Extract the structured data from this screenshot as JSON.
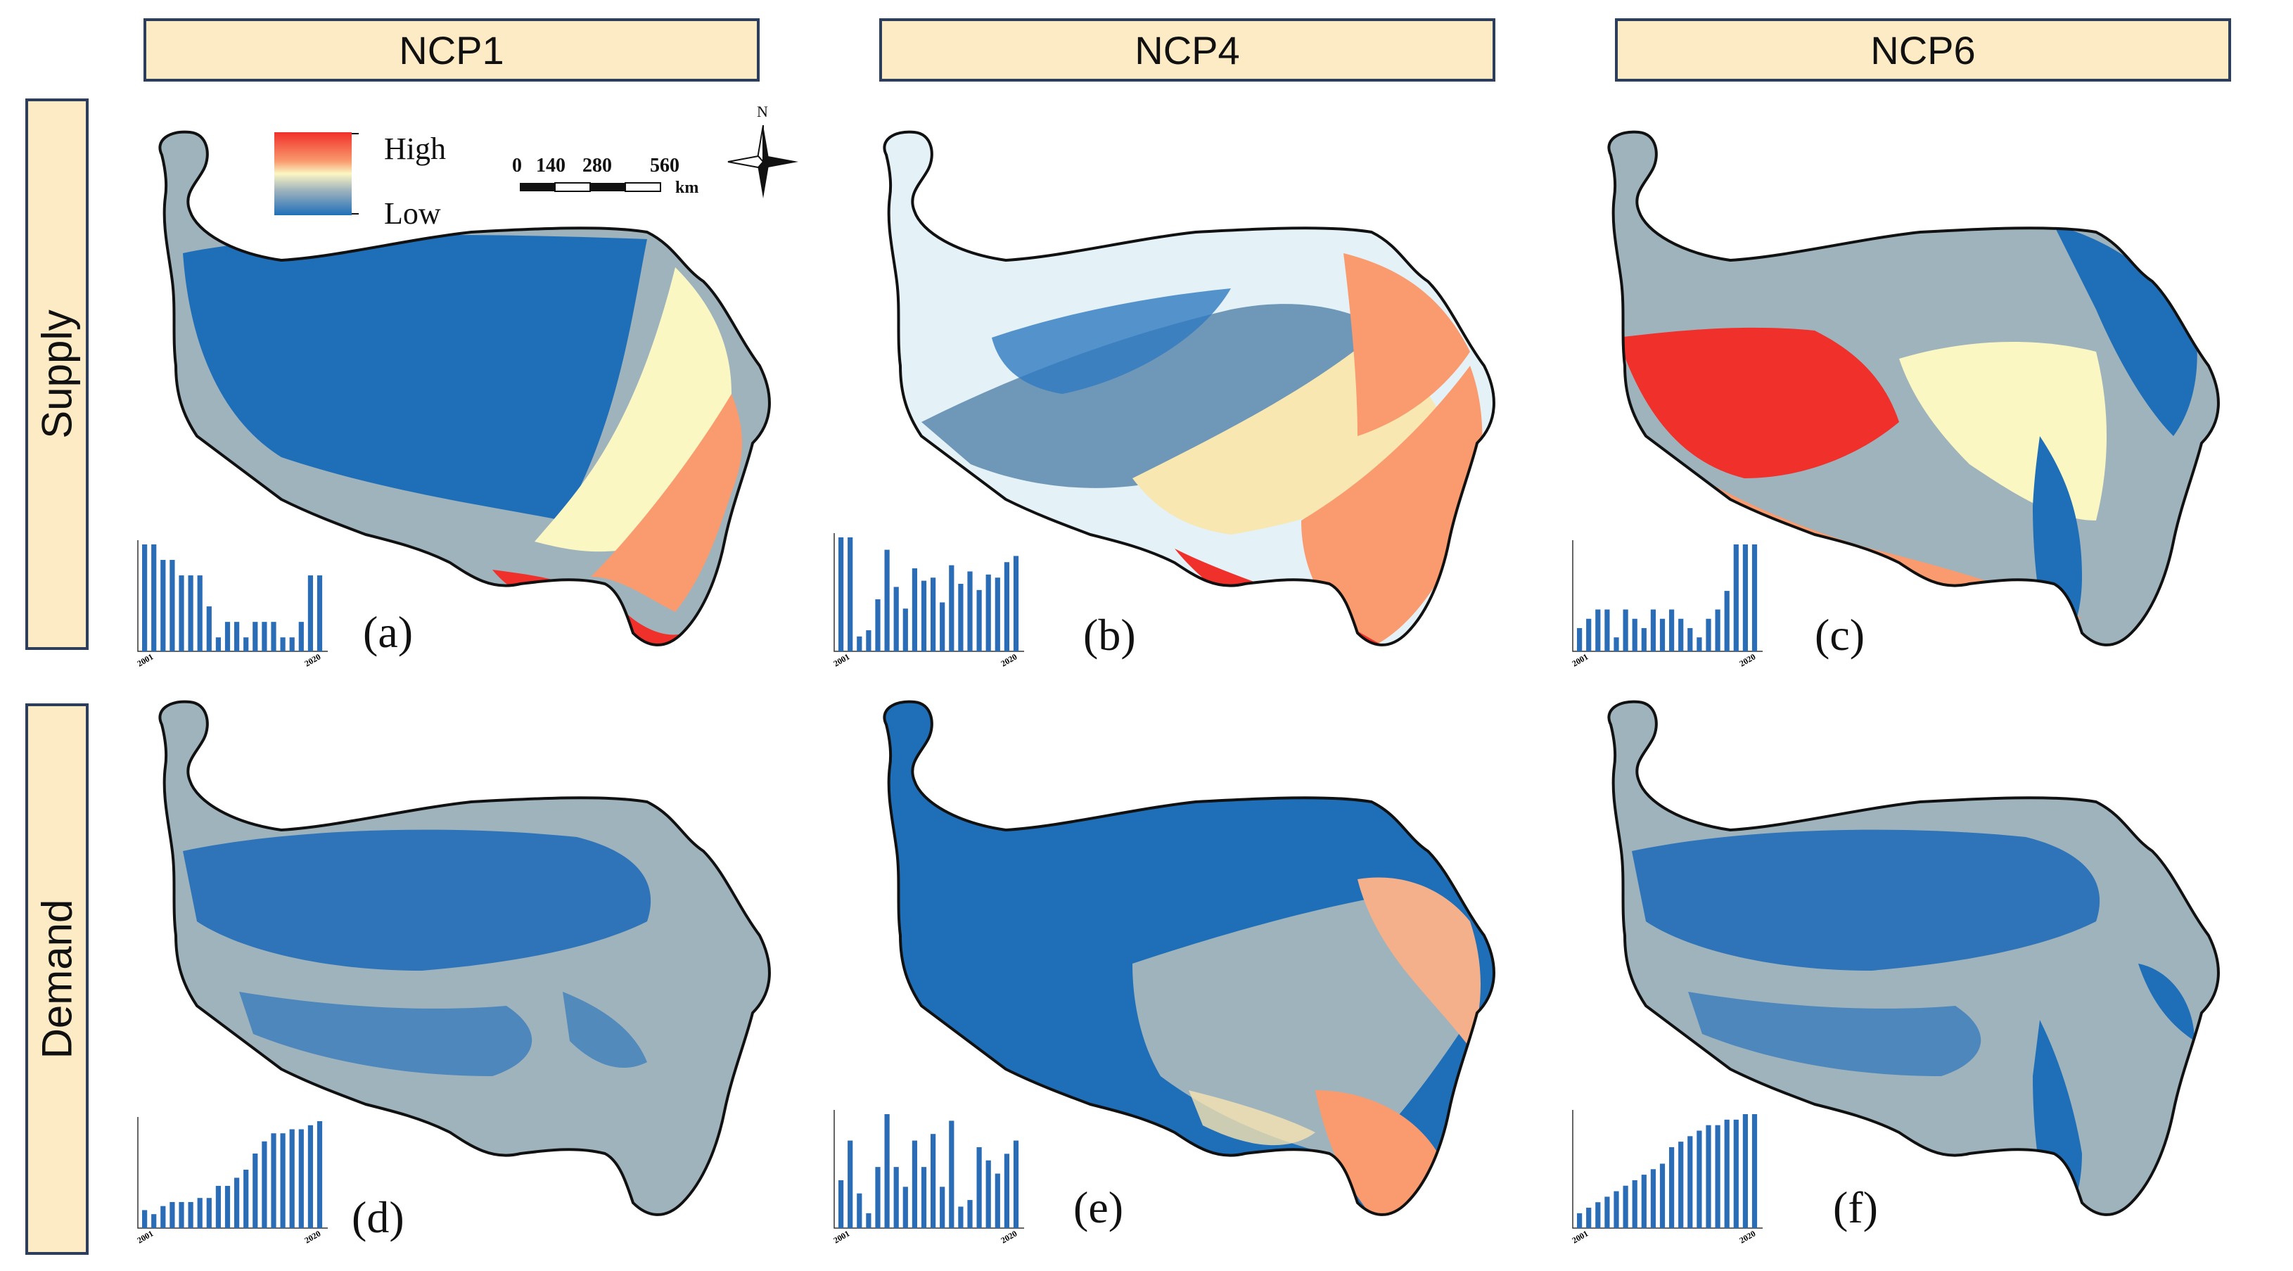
{
  "columns": [
    "NCP1",
    "NCP4",
    "NCP6"
  ],
  "rows": [
    "Supply",
    "Demand"
  ],
  "legend": {
    "high": "High",
    "low": "Low"
  },
  "scale": {
    "ticks": [
      "0",
      "140",
      "280",
      "560"
    ],
    "unit": "km"
  },
  "north": "N",
  "colors": {
    "header_fill": "#fdebc6",
    "header_border": "#2c3e5a",
    "dark_blue": "#1f6fb8",
    "grey_blue": "#9fb3bd",
    "light_yellow": "#fbf7c3",
    "light_blue": "#e4f1f7",
    "salmon": "#f99b6e",
    "red": "#f0302a",
    "bar": "#2a6cb5",
    "outline": "#111111"
  },
  "panels": [
    {
      "id": "a",
      "label": "(a)",
      "row": "Supply",
      "column": "NCP1",
      "chart": {
        "x_first": "2001",
        "x_last": "2020",
        "values": [
          0.05,
          0.05,
          0.049,
          0.049,
          0.048,
          0.048,
          0.048,
          0.046,
          0.044,
          0.045,
          0.045,
          0.044,
          0.045,
          0.045,
          0.045,
          0.044,
          0.044,
          0.045,
          0.048,
          0.048
        ]
      }
    },
    {
      "id": "b",
      "label": "(b)",
      "row": "Supply",
      "column": "NCP4",
      "chart": {
        "x_first": "2001",
        "x_last": "2020",
        "values": [
          6.2,
          6.2,
          3.0,
          3.2,
          4.2,
          5.8,
          4.6,
          3.9,
          5.2,
          4.8,
          4.9,
          4.1,
          5.3,
          4.7,
          5.1,
          4.5,
          5.0,
          4.9,
          5.4,
          5.6
        ]
      }
    },
    {
      "id": "c",
      "label": "(c)",
      "row": "Supply",
      "column": "NCP6",
      "chart": {
        "x_first": "2001",
        "x_last": "2020",
        "values": [
          2.2,
          2.3,
          2.4,
          2.4,
          2.1,
          2.4,
          2.3,
          2.2,
          2.4,
          2.3,
          2.4,
          2.3,
          2.2,
          2.1,
          2.3,
          2.4,
          2.6,
          3.1,
          3.1,
          3.1
        ]
      }
    },
    {
      "id": "d",
      "label": "(d)",
      "row": "Demand",
      "column": "NCP1",
      "chart": {
        "x_first": "2001",
        "x_last": "2020",
        "values": [
          0.27,
          0.26,
          0.28,
          0.29,
          0.29,
          0.29,
          0.3,
          0.3,
          0.33,
          0.33,
          0.35,
          0.37,
          0.41,
          0.44,
          0.46,
          0.46,
          0.47,
          0.47,
          0.48,
          0.49
        ]
      }
    },
    {
      "id": "e",
      "label": "(e)",
      "row": "Demand",
      "column": "NCP4",
      "chart": {
        "x_first": "2001",
        "x_last": "2020",
        "values": [
          1.54,
          1.6,
          1.52,
          1.49,
          1.56,
          1.64,
          1.56,
          1.53,
          1.6,
          1.56,
          1.61,
          1.53,
          1.63,
          1.5,
          1.51,
          1.59,
          1.57,
          1.55,
          1.58,
          1.6
        ]
      }
    },
    {
      "id": "f",
      "label": "(f)",
      "row": "Demand",
      "column": "NCP6",
      "chart": {
        "x_first": "2001",
        "x_last": "2020",
        "values": [
          1.21,
          1.22,
          1.23,
          1.24,
          1.25,
          1.26,
          1.27,
          1.28,
          1.29,
          1.3,
          1.33,
          1.34,
          1.35,
          1.36,
          1.37,
          1.37,
          1.38,
          1.38,
          1.39,
          1.39
        ]
      }
    }
  ]
}
